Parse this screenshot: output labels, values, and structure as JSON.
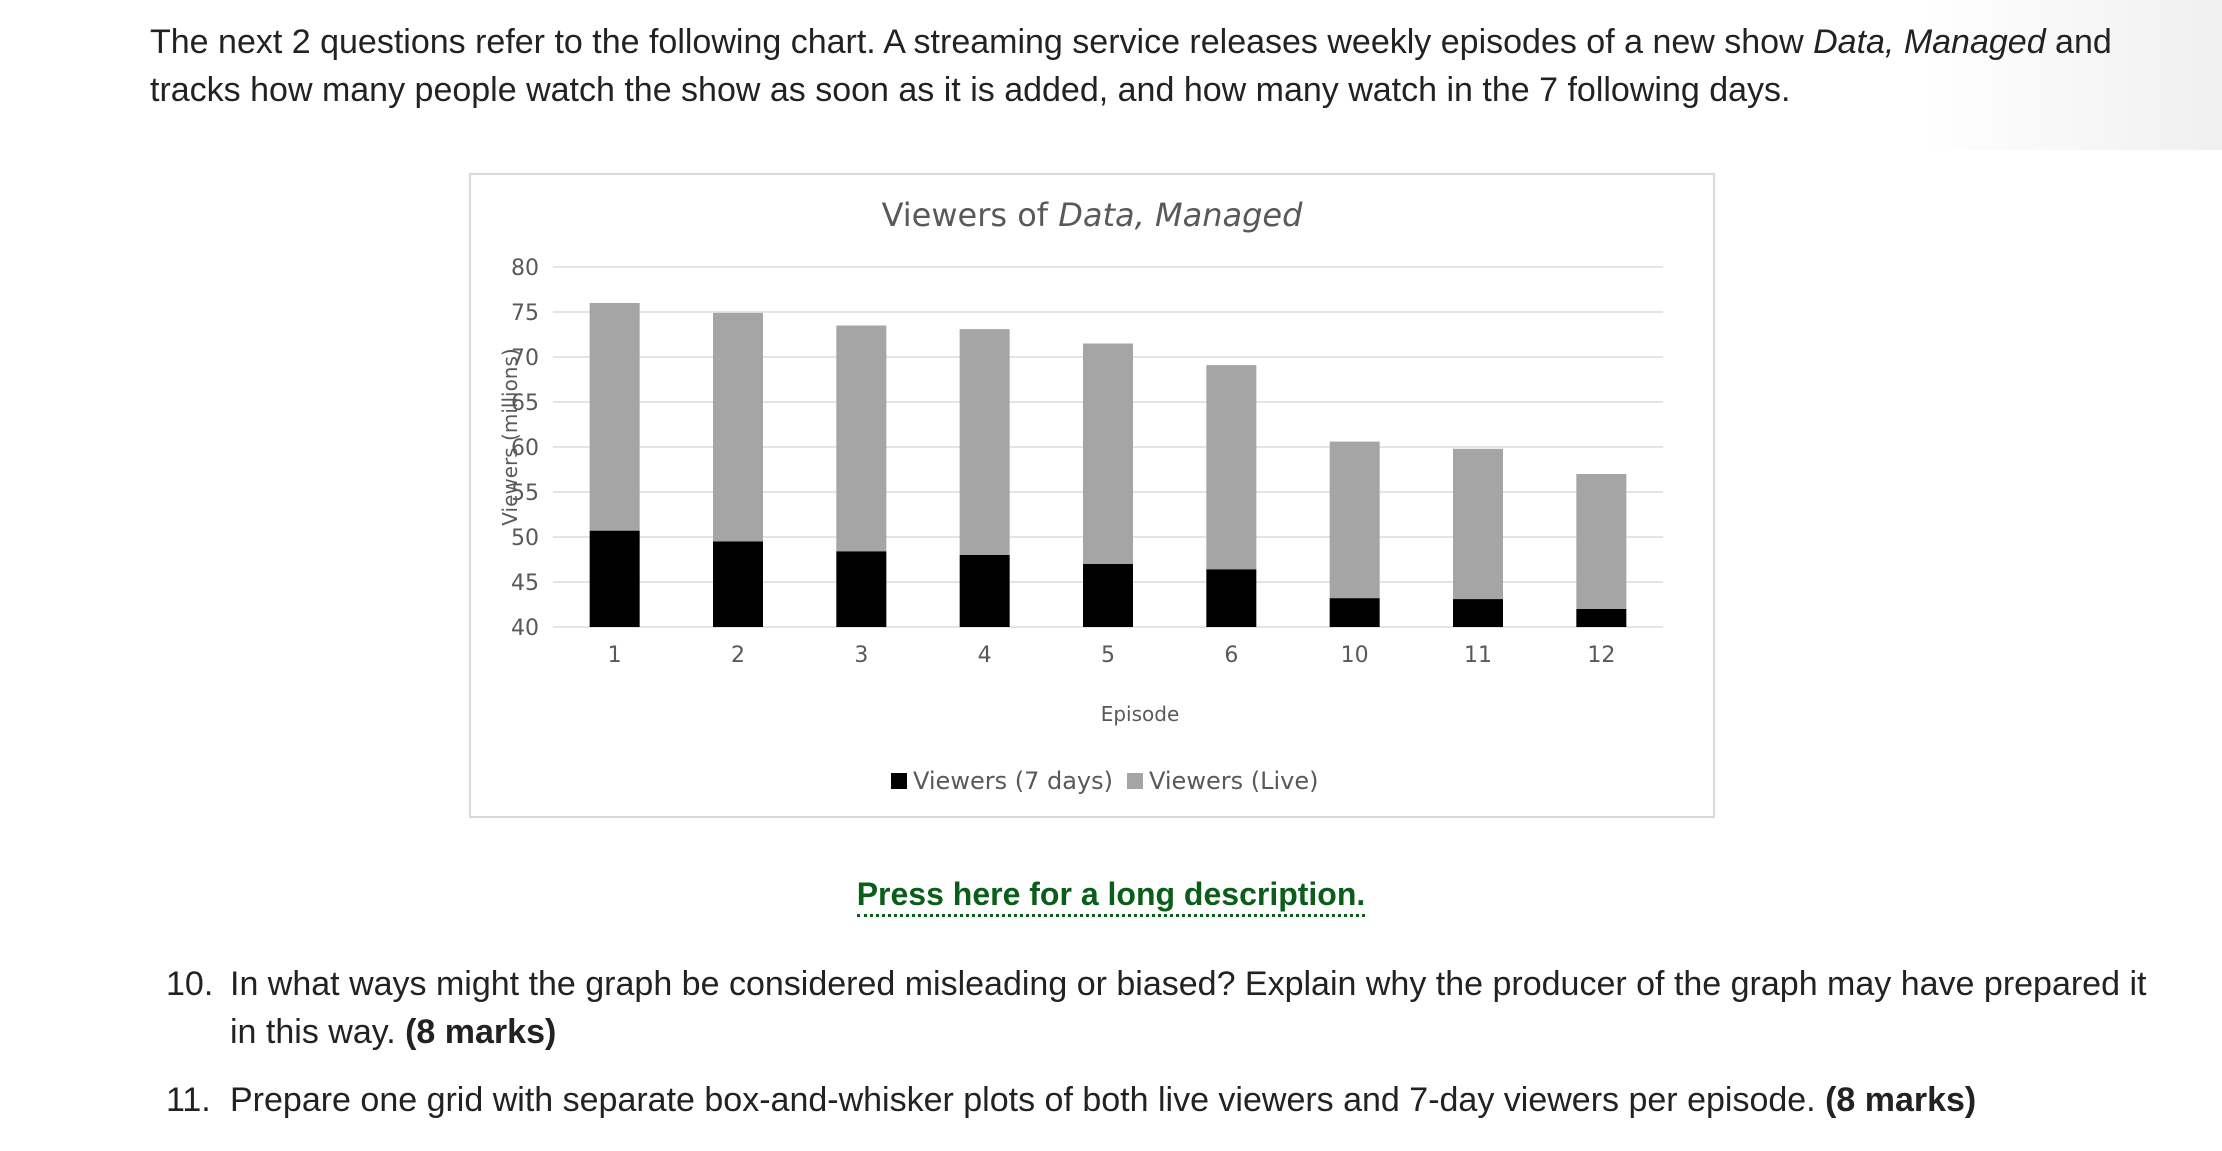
{
  "intro": {
    "text_before": "The next 2 questions refer to the following chart. A streaming service releases weekly episodes of a new show ",
    "show_name": "Data, Managed",
    "text_after": " and tracks how many people watch the show as soon as it is added, and how many watch in the 7 following days."
  },
  "chart_data": {
    "type": "bar",
    "stacked": true,
    "title_prefix": "Viewers of ",
    "title_italic": "Data, Managed",
    "xlabel": "Episode",
    "ylabel": "Viewers (millions)",
    "categories": [
      "1",
      "2",
      "3",
      "4",
      "5",
      "6",
      "10",
      "11",
      "12"
    ],
    "ylim": [
      40,
      80
    ],
    "yticks": [
      40,
      45,
      50,
      55,
      60,
      65,
      70,
      75,
      80
    ],
    "grid": true,
    "legend_position": "bottom",
    "series": [
      {
        "name": "Viewers (7 days)",
        "color": "#000000",
        "top_values": [
          50.7,
          49.5,
          48.4,
          48.0,
          47.0,
          46.4,
          43.2,
          43.1,
          42.0
        ]
      },
      {
        "name": "Viewers (Live)",
        "color": "#a5a5a5",
        "top_values": [
          76.0,
          74.9,
          73.5,
          73.1,
          71.5,
          69.1,
          60.6,
          59.8,
          57.0
        ]
      }
    ]
  },
  "long_description_link": "Press here for a long description.",
  "questions": [
    {
      "number": "10.",
      "text": "In what ways might the graph be considered misleading or biased? Explain why the producer of the graph may have prepared it in this way. ",
      "marks": "(8 marks)"
    },
    {
      "number": "11.",
      "text": "Prepare one grid with separate box-and-whisker plots of both live viewers and 7-day viewers per episode. ",
      "marks": "(8 marks)"
    }
  ]
}
